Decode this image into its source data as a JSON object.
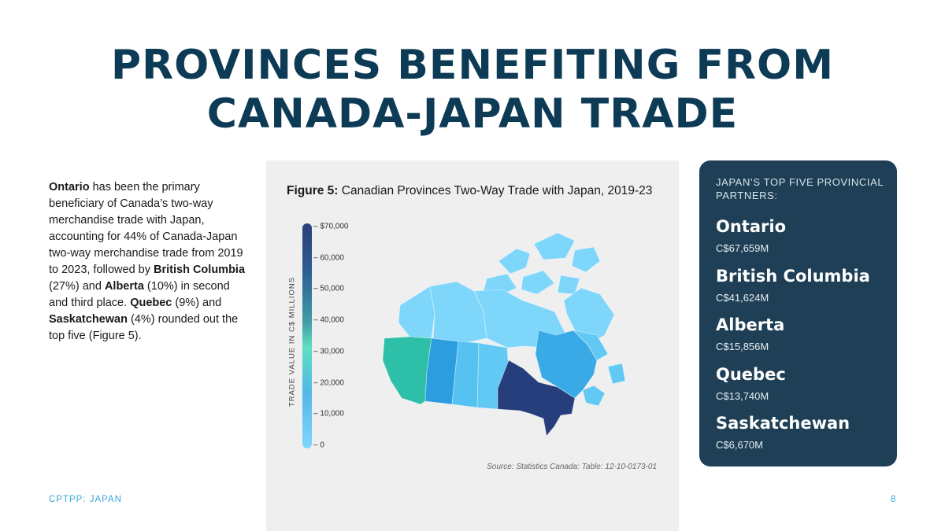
{
  "title": {
    "line1": "PROVINCES BENEFITING FROM",
    "line2": "CANADA-JAPAN TRADE"
  },
  "intro": {
    "ontario": "Ontario",
    "p1": " has been the primary beneficiary of Canada’s two-way merchandise trade with Japan, accounting for 44% of Canada-Japan two-way merchandise trade from 2019 to 2023, followed by ",
    "bc": "British Columbia",
    "p2": " (27%) and ",
    "alberta": "Alberta",
    "p3": " (10%) in second and third place. ",
    "quebec": "Quebec",
    "p4": " (9%) and ",
    "sask": "Saskatchewan",
    "p5": " (4%) rounded out the top five (Figure 5)."
  },
  "figure": {
    "label": "Figure 5:",
    "title": " Canadian Provinces Two-Way Trade with Japan, 2019-23",
    "source": "Source: Statistics Canada: Table: 12-10-0173-01",
    "axis_title": "TRADE VALUE IN C$ MILLIONS"
  },
  "chart_data": {
    "type": "choropleth-map",
    "title": "Canadian Provinces Two-Way Trade with Japan, 2019-23",
    "scale": {
      "label": "TRADE VALUE IN C$ MILLIONS",
      "range": [
        0,
        70000
      ],
      "ticks": [
        {
          "value": 70000,
          "label": "$70,000"
        },
        {
          "value": 60000,
          "label": "60,000"
        },
        {
          "value": 50000,
          "label": "50,000"
        },
        {
          "value": 40000,
          "label": "40,000"
        },
        {
          "value": 30000,
          "label": "30,000"
        },
        {
          "value": 20000,
          "label": "20,000"
        },
        {
          "value": 10000,
          "label": "10,000"
        },
        {
          "value": 0,
          "label": "0"
        }
      ]
    },
    "colors": {
      "ontario": "#263f7c",
      "british_columbia": "#2ebfa8",
      "alberta": "#2c9ee0",
      "quebec": "#3aaae6",
      "saskatchewan": "#55c2f2",
      "manitoba": "#62c8f4",
      "atlantic": "#62c8f4",
      "territories": "#7fd6fb"
    }
  },
  "sidebar": {
    "heading": "JAPAN’S TOP FIVE PROVINCIAL PARTNERS:",
    "partners": [
      {
        "name": "Ontario",
        "value": "C$67,659M"
      },
      {
        "name": "British Columbia",
        "value": "C$41,624M"
      },
      {
        "name": "Alberta",
        "value": "C$15,856M"
      },
      {
        "name": "Quebec",
        "value": "C$13,740M"
      },
      {
        "name": "Saskatchewan",
        "value": "C$6,670M"
      }
    ]
  },
  "footer": {
    "left": "CPTPP: JAPAN",
    "page": "8"
  }
}
